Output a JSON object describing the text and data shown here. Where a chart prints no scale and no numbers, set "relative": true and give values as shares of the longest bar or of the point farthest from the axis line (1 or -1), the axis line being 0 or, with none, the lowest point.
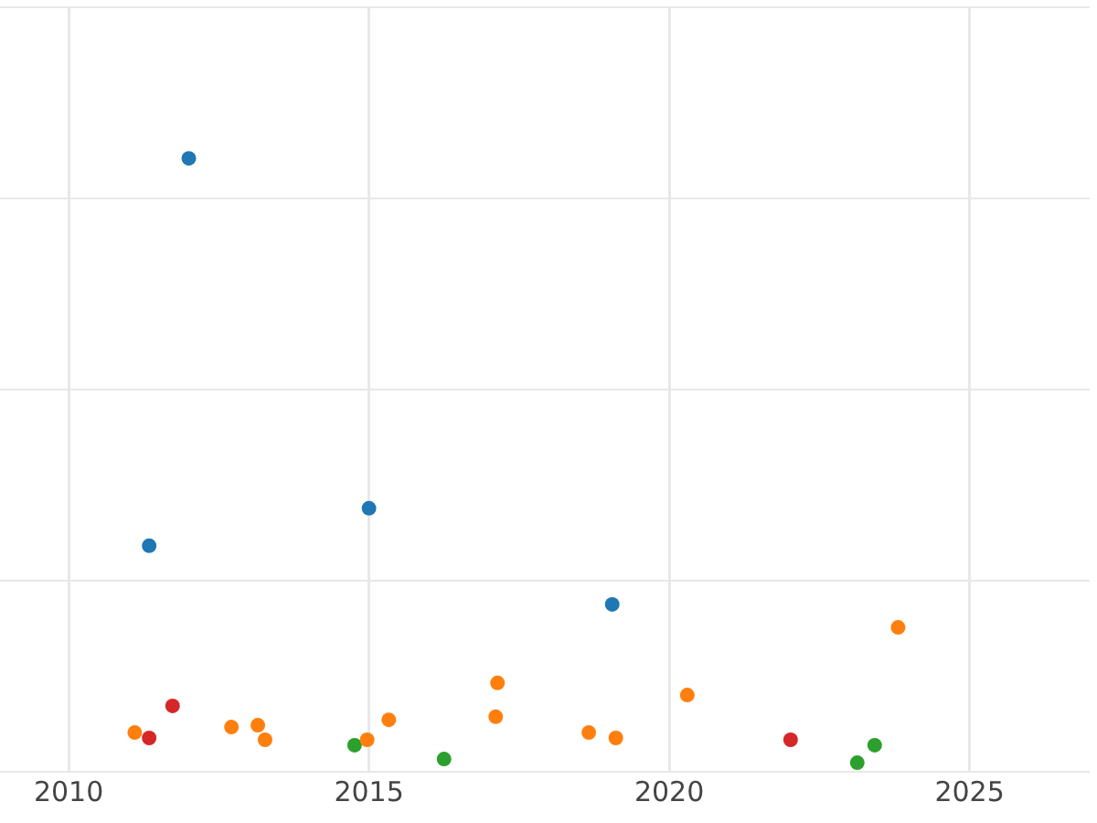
{
  "chart_data": {
    "type": "scatter",
    "relative": true,
    "tick_labels": "x",
    "grid": true,
    "legend": false,
    "marker": "circle",
    "xlim": [
      2009.1,
      2027
    ],
    "xticks": [
      2010,
      2015,
      2020,
      2025
    ],
    "series": [
      {
        "color": "#1f77b4",
        "x": [
          2012.0,
          2011.34,
          2015.0,
          2019.05
        ],
        "values": [
          1.0,
          0.359,
          0.421,
          0.262
        ]
      },
      {
        "color": "#ff7f0e",
        "x": [
          2011.1,
          2012.71,
          2013.15,
          2013.27,
          2014.97,
          2015.33,
          2017.14,
          2017.11,
          2018.66,
          2019.11,
          2020.3,
          2023.81
        ],
        "values": [
          0.05,
          0.059,
          0.062,
          0.038,
          0.038,
          0.071,
          0.132,
          0.076,
          0.05,
          0.041,
          0.112,
          0.224
        ]
      },
      {
        "color": "#d62728",
        "x": [
          2011.73,
          2011.34,
          2022.02
        ],
        "values": [
          0.094,
          0.041,
          0.038
        ]
      },
      {
        "color": "#2ca02c",
        "x": [
          2014.76,
          2016.25,
          2023.13,
          2023.42
        ],
        "values": [
          0.029,
          0.006,
          0.0,
          0.029
        ]
      }
    ]
  }
}
